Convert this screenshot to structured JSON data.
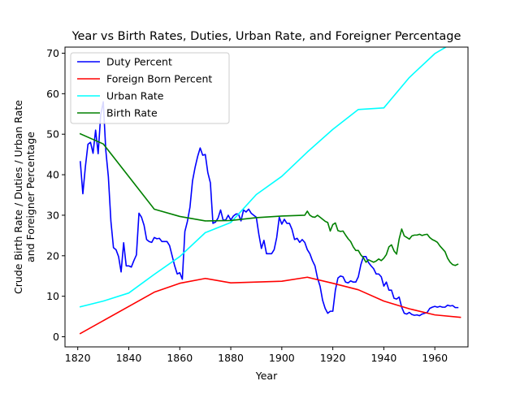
{
  "chart_data": {
    "type": "line",
    "title": "Year vs Birth Rates, Duties, Urban Rate, and Foreigner Percentage",
    "xlabel": "Year",
    "ylabel_lines": [
      "Crude Birth Rate / Duties / Urban Rate",
      "and Foreigner Percentage"
    ],
    "xlim": [
      1815,
      1973
    ],
    "ylim": [
      -2.5,
      71.5
    ],
    "xticks": [
      1820,
      1840,
      1860,
      1880,
      1900,
      1920,
      1940,
      1960
    ],
    "yticks": [
      0,
      10,
      20,
      30,
      40,
      50,
      60,
      70
    ],
    "grid": false,
    "legend_position": "top-left",
    "series": [
      {
        "name": "Duty Percent",
        "color": "#0000ff",
        "points": [
          [
            1821,
            43.2
          ],
          [
            1822,
            35.3
          ],
          [
            1823,
            42.0
          ],
          [
            1824,
            47.5
          ],
          [
            1825,
            48.0
          ],
          [
            1826,
            45.3
          ],
          [
            1827,
            51.0
          ],
          [
            1828,
            45.2
          ],
          [
            1829,
            54.8
          ],
          [
            1830,
            58.0
          ],
          [
            1831,
            46.0
          ],
          [
            1832,
            39.5
          ],
          [
            1833,
            28.5
          ],
          [
            1834,
            22.0
          ],
          [
            1835,
            21.5
          ],
          [
            1836,
            19.8
          ],
          [
            1837,
            16.0
          ],
          [
            1838,
            23.2
          ],
          [
            1839,
            17.5
          ],
          [
            1840,
            17.5
          ],
          [
            1841,
            17.2
          ],
          [
            1842,
            18.8
          ],
          [
            1843,
            20.2
          ],
          [
            1844,
            30.5
          ],
          [
            1845,
            29.5
          ],
          [
            1846,
            27.5
          ],
          [
            1847,
            24.0
          ],
          [
            1848,
            23.5
          ],
          [
            1849,
            23.3
          ],
          [
            1850,
            24.5
          ],
          [
            1851,
            24.2
          ],
          [
            1852,
            24.3
          ],
          [
            1853,
            23.5
          ],
          [
            1854,
            23.5
          ],
          [
            1855,
            23.5
          ],
          [
            1856,
            22.5
          ],
          [
            1857,
            20.0
          ],
          [
            1858,
            17.5
          ],
          [
            1859,
            15.5
          ],
          [
            1860,
            15.8
          ],
          [
            1861,
            14.2
          ],
          [
            1862,
            26.0
          ],
          [
            1863,
            28.5
          ],
          [
            1864,
            32.0
          ],
          [
            1865,
            38.5
          ],
          [
            1866,
            41.8
          ],
          [
            1867,
            44.5
          ],
          [
            1868,
            46.6
          ],
          [
            1869,
            44.8
          ],
          [
            1870,
            45.0
          ],
          [
            1871,
            40.5
          ],
          [
            1872,
            38.0
          ],
          [
            1873,
            28.0
          ],
          [
            1874,
            28.3
          ],
          [
            1875,
            29.3
          ],
          [
            1876,
            31.3
          ],
          [
            1877,
            28.8
          ],
          [
            1878,
            28.8
          ],
          [
            1879,
            30.0
          ],
          [
            1880,
            28.8
          ],
          [
            1881,
            29.8
          ],
          [
            1882,
            30.3
          ],
          [
            1883,
            30.3
          ],
          [
            1884,
            28.6
          ],
          [
            1885,
            31.3
          ],
          [
            1886,
            30.8
          ],
          [
            1887,
            31.5
          ],
          [
            1888,
            30.5
          ],
          [
            1889,
            30.0
          ],
          [
            1890,
            29.5
          ],
          [
            1891,
            25.3
          ],
          [
            1892,
            21.8
          ],
          [
            1893,
            23.8
          ],
          [
            1894,
            20.5
          ],
          [
            1895,
            20.5
          ],
          [
            1896,
            20.5
          ],
          [
            1897,
            21.5
          ],
          [
            1898,
            24.5
          ],
          [
            1899,
            29.5
          ],
          [
            1900,
            27.8
          ],
          [
            1901,
            29.0
          ],
          [
            1902,
            28.0
          ],
          [
            1903,
            28.0
          ],
          [
            1904,
            26.5
          ],
          [
            1905,
            24.0
          ],
          [
            1906,
            24.3
          ],
          [
            1907,
            23.3
          ],
          [
            1908,
            24.0
          ],
          [
            1909,
            23.3
          ],
          [
            1910,
            21.5
          ],
          [
            1911,
            20.5
          ],
          [
            1912,
            18.8
          ],
          [
            1913,
            17.5
          ],
          [
            1914,
            14.5
          ],
          [
            1915,
            12.5
          ],
          [
            1916,
            9.0
          ],
          [
            1917,
            7.0
          ],
          [
            1918,
            5.8
          ],
          [
            1919,
            6.3
          ],
          [
            1920,
            6.3
          ],
          [
            1921,
            11.5
          ],
          [
            1922,
            14.5
          ],
          [
            1923,
            15.0
          ],
          [
            1924,
            14.8
          ],
          [
            1925,
            13.5
          ],
          [
            1926,
            13.3
          ],
          [
            1927,
            13.8
          ],
          [
            1928,
            13.5
          ],
          [
            1929,
            13.5
          ],
          [
            1930,
            14.8
          ],
          [
            1931,
            17.8
          ],
          [
            1932,
            19.8
          ],
          [
            1933,
            19.8
          ],
          [
            1934,
            18.3
          ],
          [
            1935,
            17.5
          ],
          [
            1936,
            16.8
          ],
          [
            1937,
            15.5
          ],
          [
            1938,
            15.5
          ],
          [
            1939,
            14.8
          ],
          [
            1940,
            12.5
          ],
          [
            1941,
            13.5
          ],
          [
            1942,
            11.5
          ],
          [
            1943,
            11.5
          ],
          [
            1944,
            9.5
          ],
          [
            1945,
            9.3
          ],
          [
            1946,
            9.8
          ],
          [
            1947,
            7.3
          ],
          [
            1948,
            5.8
          ],
          [
            1949,
            5.6
          ],
          [
            1950,
            6.0
          ],
          [
            1951,
            5.5
          ],
          [
            1952,
            5.3
          ],
          [
            1953,
            5.4
          ],
          [
            1954,
            5.2
          ],
          [
            1955,
            5.6
          ],
          [
            1956,
            5.8
          ],
          [
            1957,
            6.0
          ],
          [
            1958,
            7.0
          ],
          [
            1959,
            7.3
          ],
          [
            1960,
            7.5
          ],
          [
            1961,
            7.3
          ],
          [
            1962,
            7.5
          ],
          [
            1963,
            7.3
          ],
          [
            1964,
            7.3
          ],
          [
            1965,
            7.8
          ],
          [
            1966,
            7.6
          ],
          [
            1967,
            7.7
          ],
          [
            1968,
            7.2
          ],
          [
            1969,
            7.2
          ]
        ]
      },
      {
        "name": "Foreign Born Percent",
        "color": "#ff0000",
        "points": [
          [
            1821,
            0.8
          ],
          [
            1850,
            11.0
          ],
          [
            1860,
            13.2
          ],
          [
            1870,
            14.4
          ],
          [
            1880,
            13.3
          ],
          [
            1890,
            13.5
          ],
          [
            1900,
            13.7
          ],
          [
            1910,
            14.7
          ],
          [
            1920,
            13.2
          ],
          [
            1930,
            11.6
          ],
          [
            1940,
            8.8
          ],
          [
            1950,
            6.9
          ],
          [
            1960,
            5.4
          ],
          [
            1970,
            4.8
          ]
        ]
      },
      {
        "name": "Urban Rate",
        "color": "#00ffff",
        "points": [
          [
            1821,
            7.4
          ],
          [
            1830,
            8.8
          ],
          [
            1840,
            10.8
          ],
          [
            1850,
            15.4
          ],
          [
            1860,
            19.8
          ],
          [
            1870,
            25.7
          ],
          [
            1880,
            28.2
          ],
          [
            1890,
            35.1
          ],
          [
            1900,
            39.6
          ],
          [
            1910,
            45.6
          ],
          [
            1920,
            51.2
          ],
          [
            1930,
            56.1
          ],
          [
            1940,
            56.5
          ],
          [
            1950,
            64.0
          ],
          [
            1960,
            69.9
          ],
          [
            1970,
            73.6
          ]
        ]
      },
      {
        "name": "Birth Rate",
        "color": "#008000",
        "points": [
          [
            1821,
            50.1
          ],
          [
            1830,
            47.6
          ],
          [
            1850,
            31.5
          ],
          [
            1860,
            29.7
          ],
          [
            1870,
            28.6
          ],
          [
            1880,
            28.7
          ],
          [
            1890,
            29.4
          ],
          [
            1900,
            29.8
          ],
          [
            1909,
            30.0
          ],
          [
            1910,
            31.0
          ],
          [
            1911,
            30.0
          ],
          [
            1912,
            29.6
          ],
          [
            1913,
            29.5
          ],
          [
            1914,
            30.0
          ],
          [
            1915,
            29.5
          ],
          [
            1916,
            29.0
          ],
          [
            1917,
            28.5
          ],
          [
            1918,
            28.2
          ],
          [
            1919,
            26.1
          ],
          [
            1920,
            27.7
          ],
          [
            1921,
            28.1
          ],
          [
            1922,
            26.2
          ],
          [
            1923,
            26.0
          ],
          [
            1924,
            26.1
          ],
          [
            1925,
            25.1
          ],
          [
            1926,
            24.2
          ],
          [
            1927,
            23.5
          ],
          [
            1928,
            22.2
          ],
          [
            1929,
            21.3
          ],
          [
            1930,
            21.3
          ],
          [
            1931,
            20.2
          ],
          [
            1932,
            19.5
          ],
          [
            1933,
            18.4
          ],
          [
            1934,
            19.0
          ],
          [
            1935,
            18.7
          ],
          [
            1936,
            18.4
          ],
          [
            1937,
            18.7
          ],
          [
            1938,
            19.2
          ],
          [
            1939,
            18.8
          ],
          [
            1940,
            19.4
          ],
          [
            1941,
            20.3
          ],
          [
            1942,
            22.2
          ],
          [
            1943,
            22.7
          ],
          [
            1944,
            21.2
          ],
          [
            1945,
            20.4
          ],
          [
            1946,
            24.1
          ],
          [
            1947,
            26.6
          ],
          [
            1948,
            24.9
          ],
          [
            1949,
            24.5
          ],
          [
            1950,
            24.1
          ],
          [
            1951,
            24.9
          ],
          [
            1952,
            25.1
          ],
          [
            1953,
            25.1
          ],
          [
            1954,
            25.3
          ],
          [
            1955,
            25.0
          ],
          [
            1956,
            25.2
          ],
          [
            1957,
            25.3
          ],
          [
            1958,
            24.5
          ],
          [
            1959,
            24.0
          ],
          [
            1960,
            23.7
          ],
          [
            1961,
            23.3
          ],
          [
            1962,
            22.4
          ],
          [
            1963,
            21.7
          ],
          [
            1964,
            21.0
          ],
          [
            1965,
            19.4
          ],
          [
            1966,
            18.4
          ],
          [
            1967,
            17.8
          ],
          [
            1968,
            17.6
          ],
          [
            1969,
            17.9
          ]
        ]
      }
    ]
  }
}
